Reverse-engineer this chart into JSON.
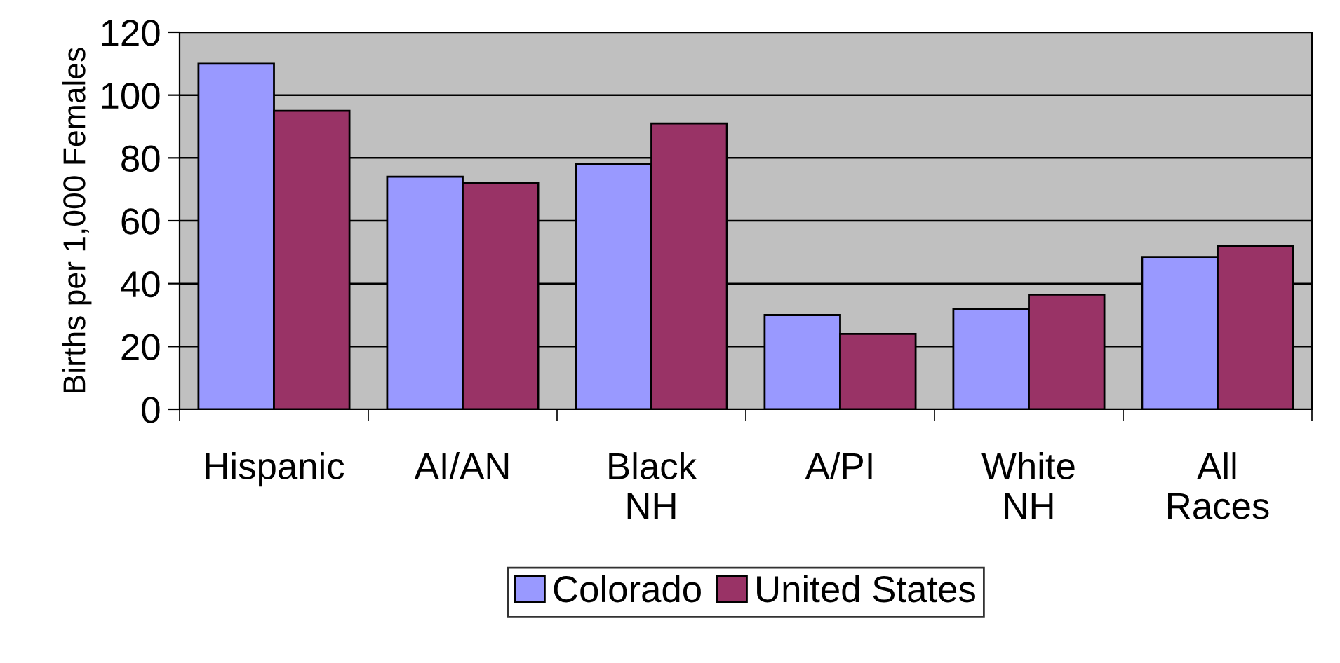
{
  "chart_data": {
    "type": "bar",
    "ylabel": "Births per 1,000 Females",
    "categories": [
      "Hispanic",
      "AI/AN",
      "Black\nNH",
      "A/PI",
      "White\nNH",
      "All\nRaces"
    ],
    "series": [
      {
        "name": "Colorado",
        "color": "#9999ff",
        "values": [
          110,
          74,
          78,
          30,
          32,
          48.5
        ]
      },
      {
        "name": "United States",
        "color": "#993366",
        "values": [
          95,
          72,
          91,
          24,
          36.5,
          52
        ]
      }
    ],
    "ylim": [
      0,
      120
    ],
    "yticks": [
      0,
      20,
      40,
      60,
      80,
      100,
      120
    ],
    "grid": "y",
    "legend": "bottom"
  }
}
